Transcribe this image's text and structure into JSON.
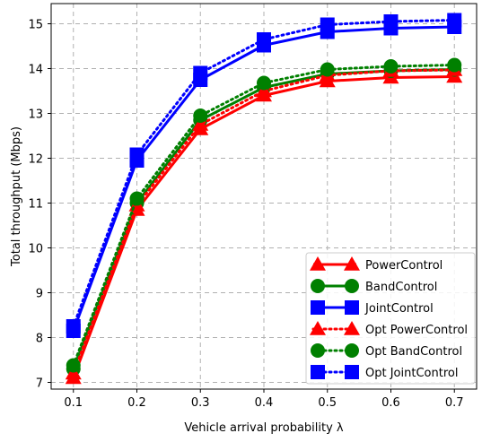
{
  "chart_data": {
    "type": "line",
    "xlabel": "Vehicle arrival probability λ",
    "ylabel": "Total throughput (Mbps)",
    "x": [
      0.1,
      0.2,
      0.3,
      0.4,
      0.5,
      0.6,
      0.7
    ],
    "x_ticks": [
      "0.1",
      "0.2",
      "0.3",
      "0.4",
      "0.5",
      "0.6",
      "0.7"
    ],
    "y_ticks": [
      "7",
      "8",
      "9",
      "10",
      "11",
      "12",
      "13",
      "14",
      "15"
    ],
    "xlim": [
      0.065,
      0.735
    ],
    "ylim": [
      6.85,
      15.45
    ],
    "grid": true,
    "legend_position": "lower-right",
    "series": [
      {
        "name": "PowerControl",
        "color": "#ff0000",
        "line": "solid",
        "marker": "triangle",
        "values": [
          7.1,
          10.85,
          12.65,
          13.4,
          13.72,
          13.8,
          13.82
        ]
      },
      {
        "name": "BandControl",
        "color": "#008000",
        "line": "solid",
        "marker": "circle",
        "values": [
          7.3,
          11.0,
          12.85,
          13.58,
          13.88,
          13.95,
          13.98
        ]
      },
      {
        "name": "JointControl",
        "color": "#0000ff",
        "line": "solid",
        "marker": "square",
        "values": [
          8.15,
          11.95,
          13.75,
          14.52,
          14.82,
          14.9,
          14.93
        ]
      },
      {
        "name": "Opt PowerControl",
        "color": "#ff0000",
        "line": "dotted",
        "marker": "triangle",
        "values": [
          7.2,
          10.95,
          12.75,
          13.5,
          13.85,
          13.95,
          13.97
        ]
      },
      {
        "name": "Opt BandControl",
        "color": "#008000",
        "line": "dotted",
        "marker": "circle",
        "values": [
          7.38,
          11.1,
          12.95,
          13.68,
          13.98,
          14.05,
          14.08
        ]
      },
      {
        "name": "Opt JointControl",
        "color": "#0000ff",
        "line": "dotted",
        "marker": "square",
        "values": [
          8.25,
          12.08,
          13.9,
          14.65,
          14.98,
          15.05,
          15.08
        ]
      }
    ]
  }
}
